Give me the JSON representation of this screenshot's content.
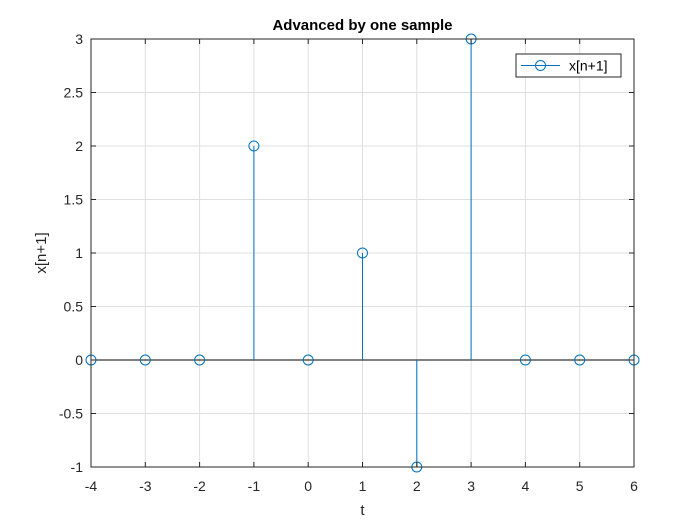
{
  "chart_data": {
    "type": "stem",
    "title": "Advanced by one sample",
    "xlabel": "t",
    "ylabel": "x[n+1]",
    "xlim": [
      -4,
      6
    ],
    "ylim": [
      -1,
      3
    ],
    "xticks": [
      "-4",
      "-3",
      "-2",
      "-1",
      "0",
      "1",
      "2",
      "3",
      "4",
      "5",
      "6"
    ],
    "yticks": [
      "-1",
      "-0.5",
      "0",
      "0.5",
      "1",
      "1.5",
      "2",
      "2.5",
      "3"
    ],
    "grid": true,
    "legend": {
      "entries": [
        "x[n+1]"
      ],
      "placement": "top-right"
    },
    "series": [
      {
        "name": "x[n+1]",
        "color": "#0072bd",
        "x": [
          -4,
          -3,
          -2,
          -1,
          0,
          1,
          2,
          3,
          4,
          5,
          6
        ],
        "values": [
          0,
          0,
          0,
          2,
          0,
          1,
          -1,
          3,
          0,
          0,
          0
        ]
      }
    ]
  }
}
